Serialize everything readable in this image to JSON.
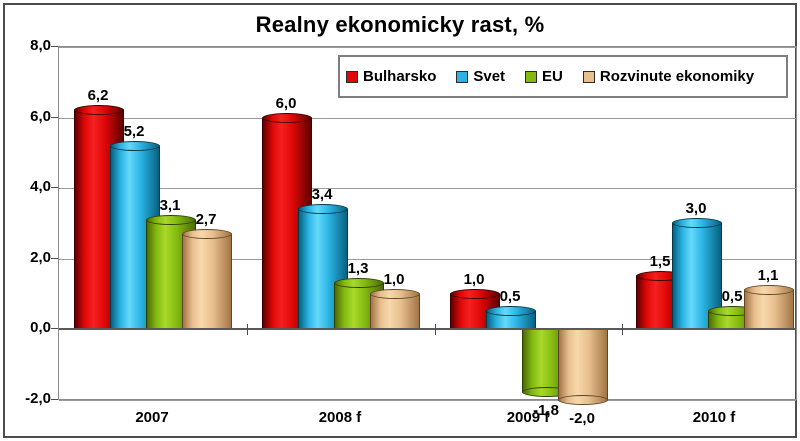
{
  "chart_data": {
    "type": "bar",
    "bar_style": "cylinder-3d",
    "title": "Realny ekonomicky rast, %",
    "categories": [
      "2007",
      "2008 f",
      "2009 f",
      "2010 f"
    ],
    "series": [
      {
        "name": "Bulharsko",
        "color": "#dd0807",
        "color_dark": "#600000",
        "color_light": "#f62020",
        "outline": "#380000",
        "values": [
          6.2,
          6.0,
          1.0,
          1.5
        ],
        "value_labels": [
          "6,2",
          "6,0",
          "1,0",
          "1,5"
        ]
      },
      {
        "name": "Svet",
        "color": "#2ab4e3",
        "color_dark": "#086180",
        "color_light": "#66d9fb",
        "outline": "#053849",
        "values": [
          5.2,
          3.4,
          0.5,
          3.0
        ],
        "value_labels": [
          "5,2",
          "3,4",
          "0,5",
          "3,0"
        ]
      },
      {
        "name": "EU",
        "color": "#84ba10",
        "color_dark": "#4c6c07",
        "color_light": "#a8d92a",
        "outline": "#2c3f03",
        "values": [
          3.1,
          1.3,
          -1.8,
          0.5
        ],
        "value_labels": [
          "3,1",
          "1,3",
          "-1,8",
          "0,5"
        ]
      },
      {
        "name": "Rozvinute ekonomiky",
        "color": "#e8bf8f",
        "color_dark": "#a37545",
        "color_light": "#f8d8ab",
        "outline": "#5f4525",
        "values": [
          2.7,
          1.0,
          -2.0,
          1.1
        ],
        "value_labels": [
          "2,7",
          "1,0",
          "-2,0",
          "1,1"
        ]
      }
    ],
    "ylim": [
      -2,
      8
    ],
    "ytick_step": 2,
    "ytick_values": [
      8,
      6,
      4,
      2,
      0,
      -2
    ],
    "ytick_labels": [
      "8,0",
      "6,0",
      "4,0",
      "2,0",
      "0,0",
      "-2,0"
    ],
    "decimal_separator": ",",
    "grid": true,
    "legend_position": "top-right-inside",
    "colors": {
      "background": "#ffffff",
      "text": "#000000",
      "gridline": "#9a9a9a",
      "zero_axis": "#595959",
      "plot_border": "#8a8a8a",
      "legend_border": "#7f7f7f",
      "frame_border": "#4c4c4c"
    }
  }
}
